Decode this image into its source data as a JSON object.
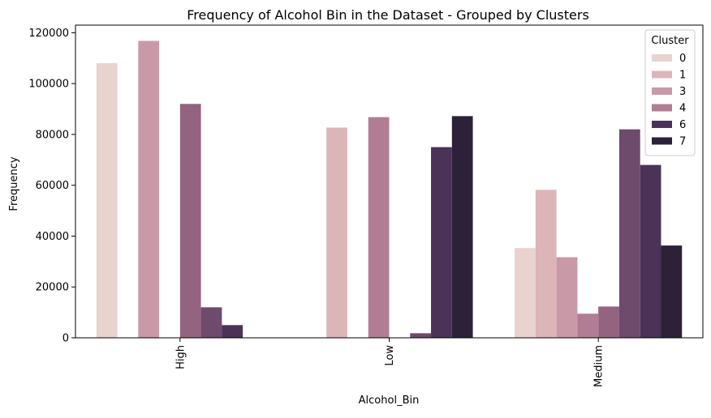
{
  "chart_data": {
    "type": "bar",
    "title": "Frequency of Alcohol Bin in the Dataset - Grouped by Clusters",
    "xlabel": "Alcohol_Bin",
    "ylabel": "Frequency",
    "categories": [
      "High",
      "Low",
      "Medium"
    ],
    "ylim": [
      0,
      123000
    ],
    "yticks": [
      0,
      20000,
      40000,
      60000,
      80000,
      100000,
      120000
    ],
    "legend": {
      "title": "Cluster",
      "position": "top-right"
    },
    "grid": false,
    "series": [
      {
        "name": "0",
        "color": "#e8d3cf",
        "values": [
          108000,
          null,
          35300
        ]
      },
      {
        "name": "1",
        "color": "#dcb5b8",
        "values": [
          null,
          82700,
          58200
        ]
      },
      {
        "name": "3",
        "color": "#c999a7",
        "values": [
          116800,
          null,
          31700
        ]
      },
      {
        "name": "4",
        "color": "#b07d95",
        "values": [
          null,
          86800,
          9500
        ]
      },
      {
        "name": "",
        "color": "#93637f",
        "values": [
          92000,
          null,
          12300
        ]
      },
      {
        "name": "",
        "color": "#6e4a6c",
        "values": [
          12000,
          1800,
          82000
        ]
      },
      {
        "name": "6",
        "color": "#4b3357",
        "values": [
          5000,
          75000,
          68000
        ]
      },
      {
        "name": "7",
        "color": "#2d2139",
        "values": [
          null,
          87200,
          36300
        ]
      }
    ]
  }
}
